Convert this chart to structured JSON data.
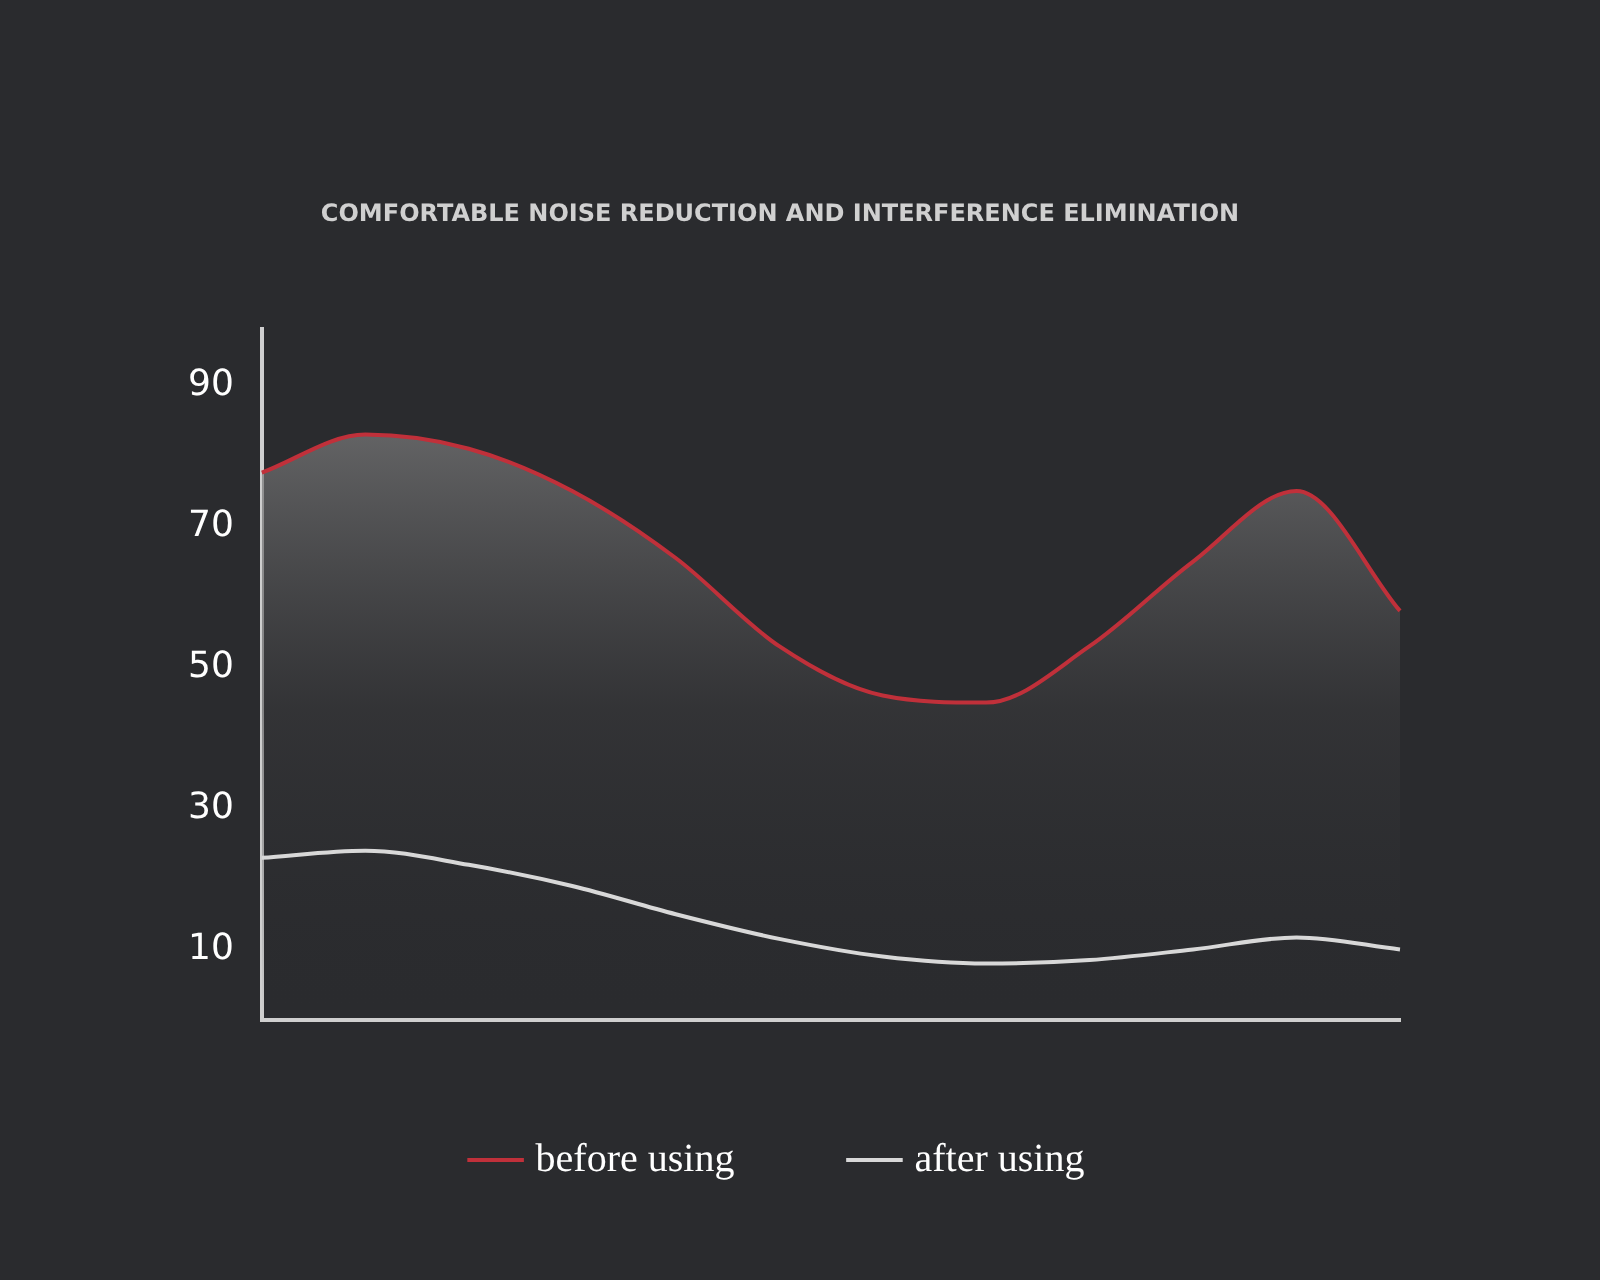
{
  "chart_data": {
    "type": "line",
    "title": "COMFORTABLE NOISE REDUCTION AND INTERFERENCE ELIMINATION",
    "categories": [
      null,
      null,
      null,
      null,
      null,
      null,
      null,
      null,
      null,
      null,
      null,
      null
    ],
    "series": [
      {
        "name": "before using",
        "type": "area",
        "color": "#c0303a",
        "values": [
          77.6,
          83,
          81,
          75,
          65.5,
          53,
          46,
          45,
          53,
          65,
          75,
          58
        ]
      },
      {
        "name": "after using",
        "type": "line",
        "color": "#d8d8d8",
        "values": [
          23,
          24,
          22,
          19,
          15,
          11.5,
          9,
          8,
          8.5,
          10,
          11.7,
          10
        ]
      }
    ],
    "ylim": [
      0,
      98
    ],
    "yticks": [
      10,
      30,
      50,
      70,
      90
    ],
    "grid": false,
    "legend": "bottom",
    "marker": "none",
    "line_style": "solid"
  }
}
